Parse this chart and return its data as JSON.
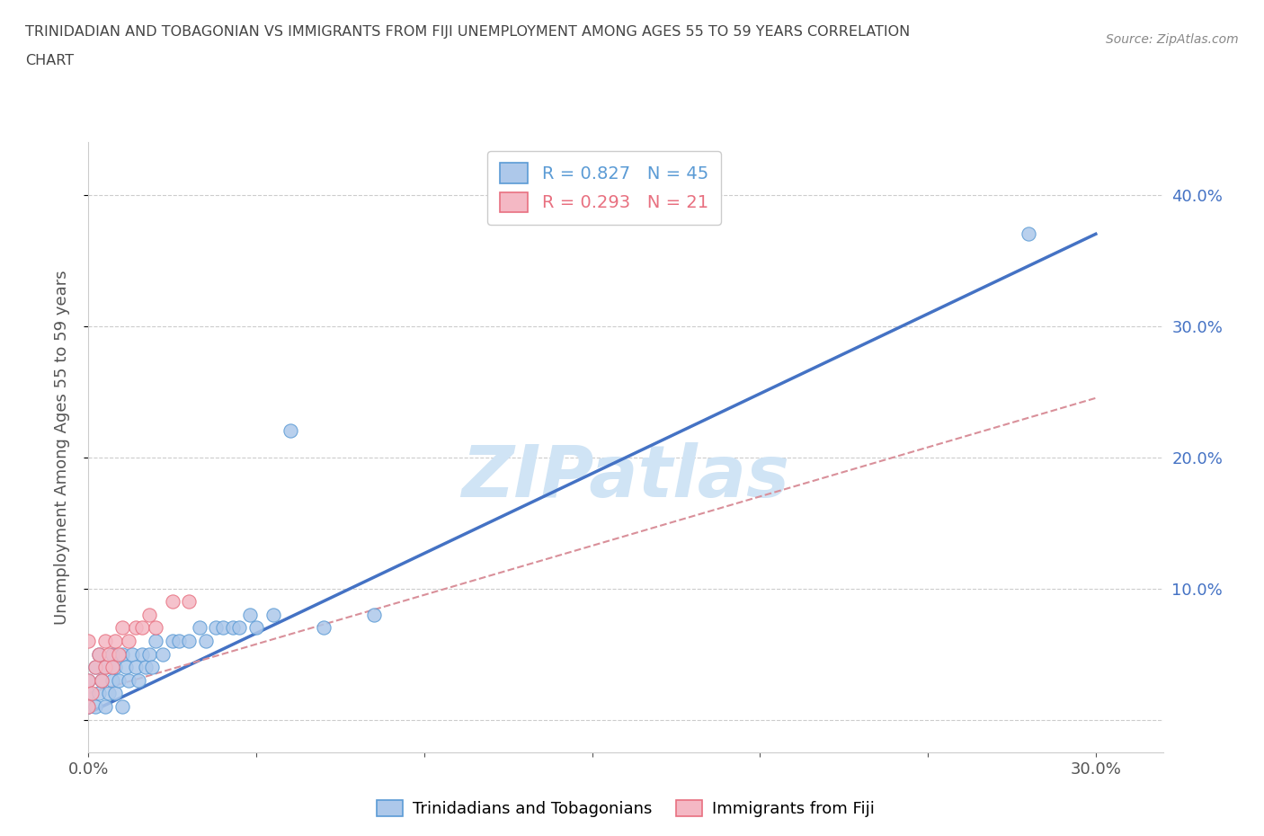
{
  "title_line1": "TRINIDADIAN AND TOBAGONIAN VS IMMIGRANTS FROM FIJI UNEMPLOYMENT AMONG AGES 55 TO 59 YEARS CORRELATION",
  "title_line2": "CHART",
  "source_text": "Source: ZipAtlas.com",
  "ylabel_text": "Unemployment Among Ages 55 to 59 years",
  "xlim": [
    0.0,
    0.32
  ],
  "ylim": [
    -0.025,
    0.44
  ],
  "xticks": [
    0.0,
    0.05,
    0.1,
    0.15,
    0.2,
    0.25,
    0.3
  ],
  "yticks": [
    0.0,
    0.1,
    0.2,
    0.3,
    0.4
  ],
  "xtick_labels": [
    "0.0%",
    "",
    "",
    "",
    "",
    "",
    "30.0%"
  ],
  "ytick_labels_right": [
    "",
    "10.0%",
    "20.0%",
    "30.0%",
    "40.0%"
  ],
  "blue_R": "0.827",
  "blue_N": "45",
  "pink_R": "0.293",
  "pink_N": "21",
  "blue_scatter_x": [
    0.0,
    0.0,
    0.0,
    0.002,
    0.002,
    0.003,
    0.003,
    0.004,
    0.005,
    0.005,
    0.006,
    0.007,
    0.007,
    0.008,
    0.008,
    0.009,
    0.01,
    0.01,
    0.011,
    0.012,
    0.013,
    0.014,
    0.015,
    0.016,
    0.017,
    0.018,
    0.019,
    0.02,
    0.022,
    0.025,
    0.027,
    0.03,
    0.033,
    0.035,
    0.038,
    0.04,
    0.043,
    0.045,
    0.048,
    0.05,
    0.055,
    0.06,
    0.07,
    0.085,
    0.28
  ],
  "blue_scatter_y": [
    0.01,
    0.02,
    0.03,
    0.01,
    0.04,
    0.02,
    0.05,
    0.03,
    0.01,
    0.04,
    0.02,
    0.03,
    0.05,
    0.02,
    0.04,
    0.03,
    0.01,
    0.05,
    0.04,
    0.03,
    0.05,
    0.04,
    0.03,
    0.05,
    0.04,
    0.05,
    0.04,
    0.06,
    0.05,
    0.06,
    0.06,
    0.06,
    0.07,
    0.06,
    0.07,
    0.07,
    0.07,
    0.07,
    0.08,
    0.07,
    0.08,
    0.22,
    0.07,
    0.08,
    0.37
  ],
  "pink_scatter_x": [
    0.0,
    0.0,
    0.0,
    0.001,
    0.002,
    0.003,
    0.004,
    0.005,
    0.005,
    0.006,
    0.007,
    0.008,
    0.009,
    0.01,
    0.012,
    0.014,
    0.016,
    0.018,
    0.02,
    0.025,
    0.03
  ],
  "pink_scatter_y": [
    0.01,
    0.03,
    0.06,
    0.02,
    0.04,
    0.05,
    0.03,
    0.04,
    0.06,
    0.05,
    0.04,
    0.06,
    0.05,
    0.07,
    0.06,
    0.07,
    0.07,
    0.08,
    0.07,
    0.09,
    0.09
  ],
  "blue_line_x": [
    0.0,
    0.3
  ],
  "blue_line_y": [
    0.005,
    0.37
  ],
  "pink_line_x": [
    0.0,
    0.3
  ],
  "pink_line_y": [
    0.02,
    0.245
  ],
  "blue_color": "#adc8ea",
  "blue_edge_color": "#5b9bd5",
  "pink_color": "#f4b8c4",
  "pink_edge_color": "#e87080",
  "blue_line_color": "#4472c4",
  "pink_line_color": "#d9909a",
  "watermark_text": "ZIPatlas",
  "watermark_color": "#d0e4f5",
  "legend_label_blue": "Trinidadians and Tobagonians",
  "legend_label_pink": "Immigrants from Fiji",
  "background_color": "#ffffff",
  "grid_color": "#cccccc",
  "right_tick_color": "#4472c4",
  "left_tick_color": "#555555",
  "title_color": "#444444",
  "source_color": "#888888"
}
